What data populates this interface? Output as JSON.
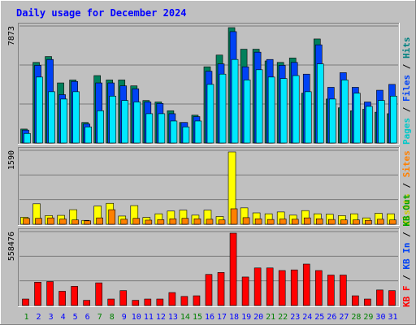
{
  "chart_data": {
    "type": "bar",
    "title": "Daily usage for December 2024",
    "categories": [
      "1",
      "2",
      "3",
      "4",
      "5",
      "6",
      "7",
      "8",
      "9",
      "10",
      "11",
      "12",
      "13",
      "14",
      "15",
      "16",
      "17",
      "18",
      "19",
      "20",
      "21",
      "22",
      "23",
      "24",
      "25",
      "26",
      "27",
      "28",
      "29",
      "30",
      "31"
    ],
    "weekend_categories": [
      "1",
      "7",
      "8",
      "14",
      "15",
      "21",
      "22",
      "28",
      "29"
    ],
    "panels": [
      {
        "id": "hits",
        "ymax": 7873,
        "ymax_label": "7873",
        "legend": [
          "Pages",
          "Files",
          "Hits"
        ],
        "legend_separator": " / ",
        "series": [
          {
            "name": "Hits",
            "color": "#00805c",
            "values": [
              950,
              5500,
              5900,
              4100,
              4300,
              1400,
              4600,
              4300,
              4300,
              3900,
              2900,
              2800,
              2200,
              1400,
              1900,
              5200,
              6000,
              7873,
              6400,
              6400,
              5600,
              5500,
              5800,
              3400,
              7100,
              3000,
              2400,
              2200,
              2300,
              2100,
              2000
            ]
          },
          {
            "name": "Files",
            "color": "#0042f5",
            "values": [
              880,
              5300,
              5700,
              3300,
              4200,
              1300,
              4100,
              4100,
              3900,
              3700,
              2800,
              2700,
              2000,
              1400,
              1800,
              4900,
              5400,
              7600,
              5200,
              6200,
              5700,
              5300,
              5500,
              4700,
              6700,
              3800,
              4800,
              3800,
              2800,
              3600,
              4000
            ]
          },
          {
            "name": "Pages",
            "color": "#00e8ff",
            "values": [
              650,
              4500,
              3500,
              3000,
              3500,
              1100,
              2200,
              3200,
              2900,
              2800,
              2000,
              2000,
              1500,
              1100,
              1500,
              4000,
              4700,
              5700,
              4300,
              5000,
              4500,
              4400,
              4600,
              3500,
              5400,
              3000,
              4300,
              3400,
              2500,
              2900,
              3200
            ]
          }
        ]
      },
      {
        "id": "visits",
        "ymax": 1590,
        "ymax_label": "1590",
        "legend": [
          "Visits",
          "Sites"
        ],
        "legend_separator": " / ",
        "series": [
          {
            "name": "Visits",
            "color": "#ffff00",
            "values": [
              155,
              450,
              190,
              195,
              320,
              85,
              400,
              460,
              180,
              410,
              150,
              230,
              290,
              310,
              200,
              310,
              170,
              1590,
              360,
              250,
              230,
              270,
              200,
              300,
              230,
              220,
              190,
              230,
              140,
              240,
              230
            ]
          },
          {
            "name": "Sites",
            "color": "#ff8000",
            "values": [
              130,
              130,
              140,
              115,
              95,
              75,
              140,
              320,
              110,
              130,
              90,
              100,
              120,
              130,
              120,
              110,
              95,
              340,
              145,
              120,
              105,
              115,
              110,
              140,
              120,
              105,
              95,
              95,
              85,
              110,
              95
            ]
          }
        ]
      },
      {
        "id": "kbytes",
        "ymax": 558476,
        "ymax_label": "558476",
        "legend": [
          "KB F",
          "KB In",
          "KB Out"
        ],
        "legend_separator": " / ",
        "series": [
          {
            "name": "KB F",
            "color": "#ff0000",
            "values": [
              50000,
              180000,
              185000,
              110000,
              148000,
              40000,
              175000,
              50000,
              115000,
              40000,
              50000,
              50000,
              100000,
              70000,
              75000,
              240000,
              255000,
              558476,
              220000,
              290000,
              290000,
              270000,
              275000,
              320000,
              270000,
              235000,
              235000,
              75000,
              50000,
              120000,
              115000
            ]
          }
        ]
      }
    ]
  },
  "colors": {
    "background": "#c0c0c0",
    "title": "#0000ff",
    "frame_light": "#ffffff",
    "frame_dark": "#808080",
    "weekday_label": "#0000ff",
    "weekend_label": "#008000",
    "hits_legend": "#008080",
    "files_legend": "#0042f5",
    "pages_legend": "#00c8c8",
    "visits_legend": "#cccc00",
    "sites_legend": "#ff8000",
    "kbf_legend": "#ff0000",
    "kbin_legend": "#0042f5",
    "kbout_legend": "#00a000"
  }
}
